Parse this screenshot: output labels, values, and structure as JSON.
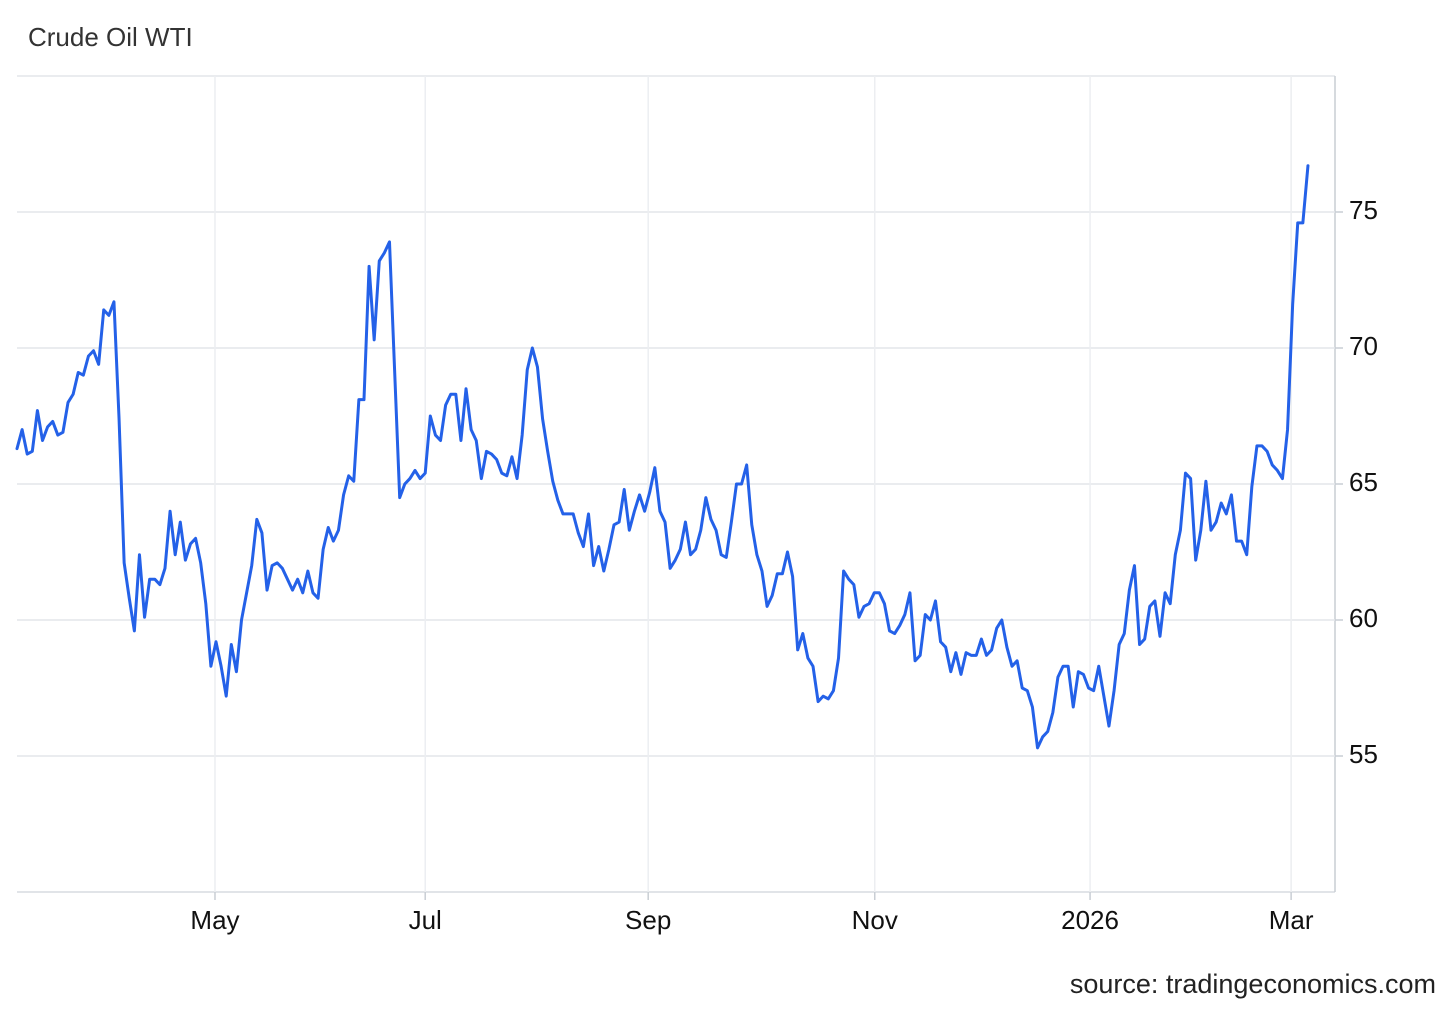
{
  "chart_data": {
    "type": "line",
    "title": "Crude Oil WTI",
    "source": "source: tradingeconomics.com",
    "ylim": [
      50,
      80
    ],
    "yticks": [
      55,
      60,
      65,
      70,
      75
    ],
    "grid": true,
    "xlim": [
      0,
      258.3
    ],
    "xticks": [
      {
        "value": 38.8,
        "label": "May"
      },
      {
        "value": 80.0,
        "label": "Jul"
      },
      {
        "value": 123.7,
        "label": "Sep"
      },
      {
        "value": 168.1,
        "label": "Nov"
      },
      {
        "value": 210.3,
        "label": "2026"
      },
      {
        "value": 249.7,
        "label": "Mar"
      }
    ],
    "series": [
      {
        "color": "#2461e8",
        "values": [
          66.3,
          67.0,
          66.1,
          66.2,
          67.7,
          66.6,
          67.1,
          67.3,
          66.8,
          66.9,
          68.0,
          68.3,
          69.1,
          69.0,
          69.7,
          69.9,
          69.4,
          71.4,
          71.2,
          71.7,
          67.4,
          62.1,
          60.8,
          59.6,
          62.4,
          60.1,
          61.5,
          61.5,
          61.3,
          61.9,
          64.0,
          62.4,
          63.6,
          62.2,
          62.8,
          63.0,
          62.1,
          60.6,
          58.3,
          59.2,
          58.3,
          57.2,
          59.1,
          58.1,
          60.0,
          61.0,
          62.0,
          63.7,
          63.2,
          61.1,
          62.0,
          62.1,
          61.9,
          61.5,
          61.1,
          61.5,
          61.0,
          61.8,
          61.0,
          60.8,
          62.6,
          63.4,
          62.9,
          63.3,
          64.6,
          65.3,
          65.1,
          68.1,
          68.1,
          73.0,
          70.3,
          73.2,
          73.5,
          73.9,
          69.2,
          64.5,
          65.0,
          65.2,
          65.5,
          65.2,
          65.4,
          67.5,
          66.8,
          66.6,
          67.9,
          68.3,
          68.3,
          66.6,
          68.5,
          67.0,
          66.6,
          65.2,
          66.2,
          66.1,
          65.9,
          65.4,
          65.3,
          66.0,
          65.2,
          66.8,
          69.2,
          70.0,
          69.3,
          67.4,
          66.2,
          65.1,
          64.4,
          63.9,
          63.9,
          63.9,
          63.2,
          62.7,
          63.9,
          62.0,
          62.7,
          61.8,
          62.6,
          63.5,
          63.6,
          64.8,
          63.3,
          64.0,
          64.6,
          64.0,
          64.7,
          65.6,
          64.0,
          63.6,
          61.9,
          62.2,
          62.6,
          63.6,
          62.4,
          62.6,
          63.3,
          64.5,
          63.7,
          63.3,
          62.4,
          62.3,
          63.6,
          65.0,
          65.0,
          65.7,
          63.5,
          62.4,
          61.8,
          60.5,
          60.9,
          61.7,
          61.7,
          62.5,
          61.6,
          58.9,
          59.5,
          58.6,
          58.3,
          57.0,
          57.2,
          57.1,
          57.4,
          58.6,
          61.8,
          61.5,
          61.3,
          60.1,
          60.5,
          60.6,
          61.0,
          61.0,
          60.6,
          59.6,
          59.5,
          59.8,
          60.2,
          61.0,
          58.5,
          58.7,
          60.2,
          60.0,
          60.7,
          59.2,
          59.0,
          58.1,
          58.8,
          58.0,
          58.8,
          58.7,
          58.7,
          59.3,
          58.7,
          58.9,
          59.7,
          60.0,
          59.0,
          58.3,
          58.5,
          57.5,
          57.4,
          56.8,
          55.3,
          55.7,
          55.9,
          56.6,
          57.9,
          58.3,
          58.3,
          56.8,
          58.1,
          58.0,
          57.5,
          57.4,
          58.3,
          57.2,
          56.1,
          57.4,
          59.1,
          59.5,
          61.1,
          62.0,
          59.1,
          59.3,
          60.5,
          60.7,
          59.4,
          61.0,
          60.6,
          62.4,
          63.3,
          65.4,
          65.2,
          62.2,
          63.3,
          65.1,
          63.3,
          63.6,
          64.3,
          63.9,
          64.6,
          62.9,
          62.9,
          62.4,
          64.9,
          66.4,
          66.4,
          66.2,
          65.7,
          65.5,
          65.2,
          67.0,
          71.6,
          74.6,
          74.6,
          76.7
        ]
      }
    ]
  }
}
